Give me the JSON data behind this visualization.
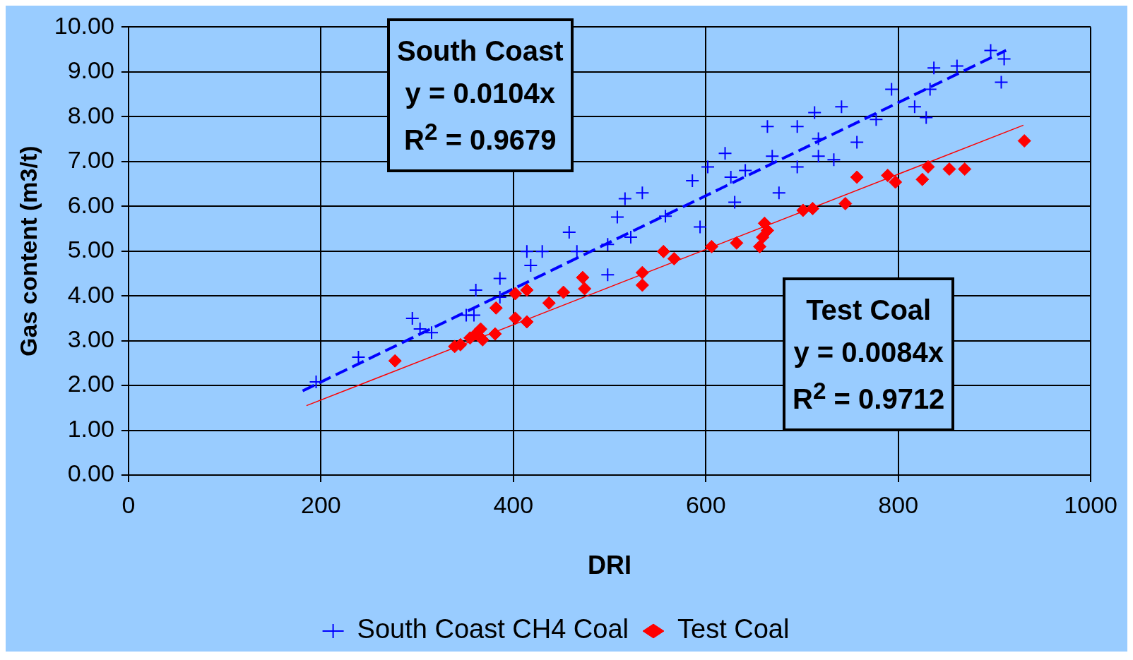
{
  "chart_data": {
    "type": "scatter",
    "xlabel": "DRI",
    "ylabel": "Gas content (m3/t)",
    "xlim": [
      0,
      1000
    ],
    "xticks": [
      0,
      200,
      400,
      600,
      800,
      1000
    ],
    "ylim": [
      0,
      10
    ],
    "yticks": [
      {
        "value": 0,
        "label": "0.00"
      },
      {
        "value": 1,
        "label": "1.00"
      },
      {
        "value": 2,
        "label": "2.00"
      },
      {
        "value": 3,
        "label": "3.00"
      },
      {
        "value": 4,
        "label": "4.00"
      },
      {
        "value": 5,
        "label": "5.00"
      },
      {
        "value": 6,
        "label": "6.00"
      },
      {
        "value": 7,
        "label": "7.00"
      },
      {
        "value": 8,
        "label": "8.00"
      },
      {
        "value": 9,
        "label": "9.00"
      },
      {
        "value": 10,
        "label": "10.00"
      }
    ],
    "grid": true,
    "legend": "bottom",
    "annotations": [
      "South Coast\ny = 0.0104x\nR$^{2}$ = 0.9679",
      "Test Coal\ny = 0.0084x\nR$^{2}$ = 0.9712"
    ],
    "series": [
      {
        "type": "scatter",
        "name": "South Coast CH4 Coal",
        "color": "#0000ff",
        "marker": "cross",
        "x": [
          195,
          239,
          295,
          303,
          315,
          351,
          359,
          361,
          386,
          386,
          414,
          418,
          430,
          458,
          466,
          498,
          498,
          508,
          516,
          522,
          534,
          558,
          586,
          594,
          602,
          620,
          626,
          630,
          641,
          664,
          669,
          676,
          695,
          695,
          713,
          717,
          717,
          733,
          741,
          757,
          777,
          793,
          817,
          829,
          833,
          837,
          861,
          896,
          907,
          910
        ],
        "values": [
          2.08,
          2.63,
          3.5,
          3.26,
          3.18,
          3.57,
          3.57,
          4.13,
          4.39,
          3.97,
          4.99,
          4.68,
          4.99,
          5.42,
          4.99,
          4.47,
          5.15,
          5.76,
          6.17,
          5.31,
          6.3,
          5.78,
          6.57,
          5.54,
          6.88,
          7.18,
          6.65,
          6.09,
          6.8,
          7.78,
          7.12,
          6.3,
          7.78,
          6.88,
          8.09,
          7.51,
          7.12,
          7.04,
          8.22,
          7.43,
          7.94,
          8.61,
          8.22,
          7.98,
          8.61,
          9.09,
          9.13,
          9.48,
          8.77,
          9.29
        ]
      },
      {
        "type": "scatter",
        "name": "Test Coal",
        "color": "#ff0000",
        "marker": "diamond",
        "x": [
          277,
          339,
          345,
          355,
          361,
          366,
          368,
          381,
          382,
          402,
          402,
          414,
          414,
          437,
          452,
          472,
          474,
          534,
          534,
          556,
          567,
          606,
          632,
          656,
          661,
          664,
          659,
          701,
          711,
          745,
          757,
          789,
          797,
          825,
          831,
          853,
          869,
          931
        ],
        "values": [
          2.55,
          2.87,
          2.91,
          3.06,
          3.15,
          3.26,
          3.02,
          3.15,
          3.73,
          3.5,
          4.05,
          4.13,
          3.42,
          3.84,
          4.08,
          4.41,
          4.16,
          4.52,
          4.24,
          4.99,
          4.83,
          5.1,
          5.18,
          5.1,
          5.62,
          5.46,
          5.31,
          5.91,
          5.95,
          6.06,
          6.65,
          6.69,
          6.54,
          6.6,
          6.88,
          6.83,
          6.83,
          7.46
        ]
      },
      {
        "type": "line",
        "color": "#0000ff",
        "line_style": "dashed",
        "marker": "none",
        "x": [
          181,
          912
        ],
        "values": [
          1.88,
          9.48
        ]
      },
      {
        "type": "line",
        "color": "#ff0000",
        "line_style": "solid",
        "marker": "none",
        "x": [
          185,
          930
        ],
        "values": [
          1.55,
          7.81
        ]
      }
    ]
  }
}
